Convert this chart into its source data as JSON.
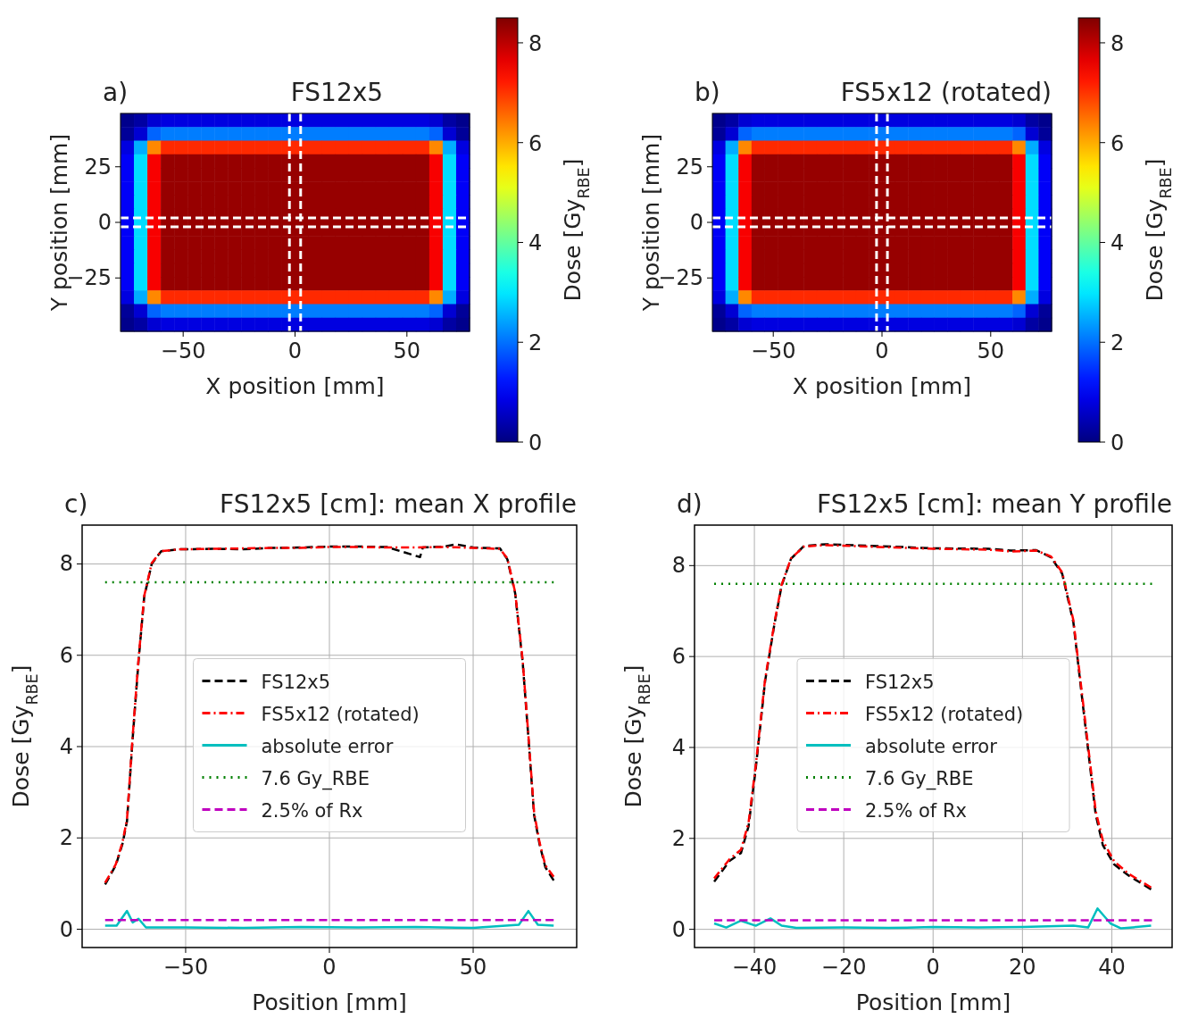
{
  "chart_data": [
    {
      "type": "heatmap",
      "title": "FS12x5",
      "annotations": [
        "a)"
      ],
      "xlabel": "X position [mm]",
      "ylabel": "Y position [mm]",
      "xlim": [
        -78,
        78
      ],
      "ylim": [
        -49,
        49
      ],
      "xticks": [
        -50,
        0,
        50
      ],
      "yticks": [
        -25,
        0,
        25
      ],
      "clim": [
        0,
        8.5
      ],
      "cticks": [
        0,
        2,
        4,
        6,
        8
      ],
      "clabel": "Dose [Gy$_{RBE}$]",
      "ref_lines": [
        {
          "axis": "x",
          "value": -2.5,
          "color": "#ffffff",
          "line_style": "dashed"
        },
        {
          "axis": "x",
          "value": 2.5,
          "color": "#ffffff",
          "line_style": "dashed"
        },
        {
          "axis": "y",
          "value": -2,
          "color": "#ffffff",
          "line_style": "dashed"
        },
        {
          "axis": "y",
          "value": 2,
          "color": "#ffffff",
          "line_style": "dashed"
        }
      ],
      "cells": [
        [
          0.1,
          0.3,
          0.7,
          0.8,
          0.8,
          0.8,
          0.8,
          0.8,
          0.8,
          0.8,
          0.8,
          0.8,
          0.8,
          0.8,
          0.8,
          0.8,
          0.8,
          0.8,
          0.8,
          0.8,
          0.8,
          0.8,
          0.8,
          0.7,
          0.3,
          0.1
        ],
        [
          0.2,
          0.7,
          1.9,
          2.1,
          2.1,
          2.1,
          2.1,
          2.1,
          2.1,
          2.1,
          2.1,
          2.1,
          2.1,
          2.1,
          2.1,
          2.1,
          2.1,
          2.1,
          2.1,
          2.1,
          2.1,
          2.1,
          2.1,
          1.9,
          0.7,
          0.2
        ],
        [
          0.8,
          2.5,
          6.3,
          7.1,
          7.1,
          7.1,
          7.1,
          7.1,
          7.1,
          7.1,
          7.1,
          7.1,
          7.1,
          7.1,
          7.1,
          7.1,
          7.1,
          7.1,
          7.1,
          7.1,
          7.1,
          7.1,
          7.1,
          6.3,
          2.5,
          0.8
        ],
        [
          1.0,
          2.9,
          7.5,
          8.3,
          8.3,
          8.3,
          8.3,
          8.3,
          8.3,
          8.3,
          8.3,
          8.3,
          8.3,
          8.3,
          8.3,
          8.3,
          8.3,
          8.3,
          8.3,
          8.3,
          8.3,
          8.3,
          8.3,
          7.5,
          2.9,
          1.0
        ],
        [
          1.0,
          2.9,
          7.5,
          8.3,
          8.3,
          8.3,
          8.3,
          8.3,
          8.3,
          8.3,
          8.3,
          8.3,
          8.3,
          8.3,
          8.3,
          8.3,
          8.3,
          8.3,
          8.3,
          8.3,
          8.3,
          8.3,
          8.3,
          7.5,
          2.9,
          1.0
        ],
        [
          1.0,
          2.9,
          7.5,
          8.3,
          8.3,
          8.3,
          8.3,
          8.3,
          8.3,
          8.3,
          8.3,
          8.3,
          8.3,
          8.3,
          8.3,
          8.3,
          8.3,
          8.3,
          8.3,
          8.3,
          8.3,
          8.3,
          8.3,
          7.5,
          2.9,
          1.0
        ],
        [
          1.0,
          2.9,
          7.5,
          8.3,
          8.3,
          8.3,
          8.3,
          8.3,
          8.3,
          8.3,
          8.3,
          8.3,
          8.3,
          8.3,
          8.3,
          8.3,
          8.3,
          8.3,
          8.3,
          8.3,
          8.3,
          8.3,
          8.3,
          7.5,
          2.9,
          1.0
        ],
        [
          1.0,
          2.9,
          7.5,
          8.3,
          8.3,
          8.3,
          8.3,
          8.3,
          8.3,
          8.3,
          8.3,
          8.3,
          8.3,
          8.3,
          8.3,
          8.3,
          8.3,
          8.3,
          8.3,
          8.3,
          8.3,
          8.3,
          8.3,
          7.5,
          2.9,
          1.0
        ],
        [
          1.0,
          2.9,
          7.5,
          8.3,
          8.3,
          8.3,
          8.3,
          8.3,
          8.3,
          8.3,
          8.3,
          8.3,
          8.3,
          8.3,
          8.3,
          8.3,
          8.3,
          8.3,
          8.3,
          8.3,
          8.3,
          8.3,
          8.3,
          7.5,
          2.9,
          1.0
        ],
        [
          1.0,
          2.9,
          7.5,
          8.3,
          8.3,
          8.3,
          8.3,
          8.3,
          8.3,
          8.3,
          8.3,
          8.3,
          8.3,
          8.3,
          8.3,
          8.3,
          8.3,
          8.3,
          8.3,
          8.3,
          8.3,
          8.3,
          8.3,
          7.5,
          2.9,
          1.0
        ],
        [
          1.0,
          2.9,
          7.5,
          8.3,
          8.3,
          8.3,
          8.3,
          8.3,
          8.3,
          8.3,
          8.3,
          8.3,
          8.3,
          8.3,
          8.3,
          8.3,
          8.3,
          8.3,
          8.3,
          8.3,
          8.3,
          8.3,
          8.3,
          7.5,
          2.9,
          1.0
        ],
        [
          1.0,
          2.9,
          7.5,
          8.3,
          8.3,
          8.3,
          8.3,
          8.3,
          8.3,
          8.3,
          8.3,
          8.3,
          8.3,
          8.3,
          8.3,
          8.3,
          8.3,
          8.3,
          8.3,
          8.3,
          8.3,
          8.3,
          8.3,
          7.5,
          2.9,
          1.0
        ],
        [
          1.0,
          2.9,
          7.5,
          8.3,
          8.3,
          8.3,
          8.3,
          8.3,
          8.3,
          8.3,
          8.3,
          8.3,
          8.3,
          8.3,
          8.3,
          8.3,
          8.3,
          8.3,
          8.3,
          8.3,
          8.3,
          8.3,
          8.3,
          7.5,
          2.9,
          1.0
        ],
        [
          0.8,
          2.5,
          6.3,
          7.1,
          7.1,
          7.1,
          7.1,
          7.1,
          7.1,
          7.1,
          7.1,
          7.1,
          7.1,
          7.1,
          7.1,
          7.1,
          7.1,
          7.1,
          7.1,
          7.1,
          7.1,
          7.1,
          7.1,
          6.3,
          2.5,
          0.8
        ],
        [
          0.2,
          0.7,
          1.9,
          2.1,
          2.1,
          2.1,
          2.1,
          2.1,
          2.1,
          2.1,
          2.1,
          2.1,
          2.1,
          2.1,
          2.1,
          2.1,
          2.1,
          2.1,
          2.1,
          2.1,
          2.1,
          2.1,
          2.1,
          1.9,
          0.7,
          0.2
        ],
        [
          0.1,
          0.3,
          0.7,
          0.8,
          0.8,
          0.8,
          0.8,
          0.8,
          0.8,
          0.8,
          0.8,
          0.8,
          0.8,
          0.8,
          0.8,
          0.8,
          0.8,
          0.8,
          0.8,
          0.8,
          0.8,
          0.8,
          0.8,
          0.7,
          0.3,
          0.1
        ]
      ]
    },
    {
      "type": "heatmap",
      "title": "FS5x12 (rotated)",
      "annotations": [
        "b)"
      ],
      "xlabel": "X position [mm]",
      "ylabel": "Y position [mm]",
      "xlim": [
        -78,
        78
      ],
      "ylim": [
        -49,
        49
      ],
      "xticks": [
        -50,
        0,
        50
      ],
      "yticks": [
        -25,
        0,
        25
      ],
      "clim": [
        0,
        8.5
      ],
      "cticks": [
        0,
        2,
        4,
        6,
        8
      ],
      "clabel": "Dose [Gy$_{RBE}$]",
      "ref_lines": [
        {
          "axis": "x",
          "value": -2.5,
          "color": "#ffffff",
          "line_style": "dashed"
        },
        {
          "axis": "x",
          "value": 2.5,
          "color": "#ffffff",
          "line_style": "dashed"
        },
        {
          "axis": "y",
          "value": -2,
          "color": "#ffffff",
          "line_style": "dashed"
        },
        {
          "axis": "y",
          "value": 2,
          "color": "#ffffff",
          "line_style": "dashed"
        }
      ],
      "cells": [
        [
          0.1,
          0.3,
          0.7,
          0.8,
          0.8,
          0.8,
          0.8,
          0.8,
          0.8,
          0.8,
          0.8,
          0.8,
          0.8,
          0.8,
          0.8,
          0.8,
          0.8,
          0.8,
          0.8,
          0.8,
          0.8,
          0.8,
          0.8,
          0.7,
          0.3,
          0.1
        ],
        [
          0.2,
          0.7,
          1.9,
          2.1,
          2.1,
          2.1,
          2.1,
          2.1,
          2.1,
          2.1,
          2.1,
          2.1,
          2.1,
          2.1,
          2.1,
          2.1,
          2.1,
          2.1,
          2.1,
          2.1,
          2.1,
          2.1,
          2.1,
          1.9,
          0.7,
          0.2
        ],
        [
          0.8,
          2.5,
          6.3,
          7.1,
          7.1,
          7.1,
          7.1,
          7.1,
          7.1,
          7.1,
          7.1,
          7.1,
          7.1,
          7.1,
          7.1,
          7.1,
          7.1,
          7.1,
          7.1,
          7.1,
          7.1,
          7.1,
          7.1,
          6.3,
          2.5,
          0.8
        ],
        [
          1.0,
          2.9,
          7.5,
          8.3,
          8.3,
          8.3,
          8.3,
          8.3,
          8.3,
          8.3,
          8.3,
          8.3,
          8.3,
          8.3,
          8.3,
          8.3,
          8.3,
          8.3,
          8.3,
          8.3,
          8.3,
          8.3,
          8.3,
          7.5,
          2.9,
          1.0
        ],
        [
          1.0,
          2.9,
          7.5,
          8.3,
          8.3,
          8.3,
          8.3,
          8.3,
          8.3,
          8.3,
          8.3,
          8.3,
          8.3,
          8.3,
          8.3,
          8.3,
          8.3,
          8.3,
          8.3,
          8.3,
          8.3,
          8.3,
          8.3,
          7.5,
          2.9,
          1.0
        ],
        [
          1.0,
          2.9,
          7.5,
          8.3,
          8.3,
          8.3,
          8.3,
          8.3,
          8.3,
          8.3,
          8.3,
          8.3,
          8.3,
          8.3,
          8.3,
          8.3,
          8.3,
          8.3,
          8.3,
          8.3,
          8.3,
          8.3,
          8.3,
          7.5,
          2.9,
          1.0
        ],
        [
          1.0,
          2.9,
          7.5,
          8.3,
          8.3,
          8.3,
          8.3,
          8.3,
          8.3,
          8.3,
          8.3,
          8.3,
          8.3,
          8.3,
          8.3,
          8.3,
          8.3,
          8.3,
          8.3,
          8.3,
          8.3,
          8.3,
          8.3,
          7.5,
          2.9,
          1.0
        ],
        [
          1.0,
          2.9,
          7.5,
          8.3,
          8.3,
          8.3,
          8.3,
          8.3,
          8.3,
          8.3,
          8.3,
          8.3,
          8.3,
          8.3,
          8.3,
          8.3,
          8.3,
          8.3,
          8.3,
          8.3,
          8.3,
          8.3,
          8.3,
          7.5,
          2.9,
          1.0
        ],
        [
          1.0,
          2.9,
          7.5,
          8.3,
          8.3,
          8.3,
          8.3,
          8.3,
          8.3,
          8.3,
          8.3,
          8.3,
          8.3,
          8.3,
          8.3,
          8.3,
          8.3,
          8.3,
          8.3,
          8.3,
          8.3,
          8.3,
          8.3,
          7.5,
          2.9,
          1.0
        ],
        [
          1.0,
          2.9,
          7.5,
          8.3,
          8.3,
          8.3,
          8.3,
          8.3,
          8.3,
          8.3,
          8.3,
          8.3,
          8.3,
          8.3,
          8.3,
          8.3,
          8.3,
          8.3,
          8.3,
          8.3,
          8.3,
          8.3,
          8.3,
          7.5,
          2.9,
          1.0
        ],
        [
          1.0,
          2.9,
          7.5,
          8.3,
          8.3,
          8.3,
          8.3,
          8.3,
          8.3,
          8.3,
          8.3,
          8.3,
          8.3,
          8.3,
          8.3,
          8.3,
          8.3,
          8.3,
          8.3,
          8.3,
          8.3,
          8.3,
          8.3,
          7.5,
          2.9,
          1.0
        ],
        [
          1.0,
          2.9,
          7.5,
          8.3,
          8.3,
          8.3,
          8.3,
          8.3,
          8.3,
          8.3,
          8.3,
          8.3,
          8.3,
          8.3,
          8.3,
          8.3,
          8.3,
          8.3,
          8.3,
          8.3,
          8.3,
          8.3,
          8.3,
          7.5,
          2.9,
          1.0
        ],
        [
          1.0,
          2.9,
          7.5,
          8.3,
          8.3,
          8.3,
          8.3,
          8.3,
          8.3,
          8.3,
          8.3,
          8.3,
          8.3,
          8.3,
          8.3,
          8.3,
          8.3,
          8.3,
          8.3,
          8.3,
          8.3,
          8.3,
          8.3,
          7.5,
          2.9,
          1.0
        ],
        [
          0.8,
          2.5,
          6.3,
          7.1,
          7.1,
          7.1,
          7.1,
          7.1,
          7.1,
          7.1,
          7.1,
          7.1,
          7.1,
          7.1,
          7.1,
          7.1,
          7.1,
          7.1,
          7.1,
          7.1,
          7.1,
          7.1,
          7.1,
          6.3,
          2.5,
          0.8
        ],
        [
          0.2,
          0.7,
          1.9,
          2.1,
          2.1,
          2.1,
          2.1,
          2.1,
          2.1,
          2.1,
          2.1,
          2.1,
          2.1,
          2.1,
          2.1,
          2.1,
          2.1,
          2.1,
          2.1,
          2.1,
          2.1,
          2.1,
          2.1,
          1.9,
          0.7,
          0.2
        ],
        [
          0.1,
          0.3,
          0.7,
          0.8,
          0.8,
          0.8,
          0.8,
          0.8,
          0.8,
          0.8,
          0.8,
          0.8,
          0.8,
          0.8,
          0.8,
          0.8,
          0.8,
          0.8,
          0.8,
          0.8,
          0.8,
          0.8,
          0.8,
          0.7,
          0.3,
          0.1
        ]
      ]
    },
    {
      "type": "line",
      "title": "FS12x5 [cm]: mean X profile",
      "annotations": [
        "c)"
      ],
      "xlabel": "Position [mm]",
      "ylabel": "Dose [Gy$_{RBE}$]",
      "xlim": [
        -86,
        86
      ],
      "ylim": [
        -0.4,
        8.85
      ],
      "xticks": [
        -50,
        0,
        50
      ],
      "yticks": [
        0,
        2,
        4,
        6,
        8
      ],
      "grid": true,
      "legend": "center",
      "series": [
        {
          "name": "FS12x5",
          "color": "#000000",
          "line_style": "dashed",
          "x": [
            -78,
            -74.3,
            -72,
            -70.4,
            -68.4,
            -66.4,
            -64.4,
            -61.8,
            -58.5,
            -51.9,
            -40,
            -30,
            -20,
            -10,
            0,
            10,
            20,
            31.5,
            32.5,
            40,
            44,
            50,
            59.3,
            61.9,
            64.6,
            67.2,
            69.2,
            71.2,
            73.1,
            75.1,
            78
          ],
          "values": [
            0.98,
            1.4,
            1.86,
            2.36,
            4.2,
            5.86,
            7.28,
            8.0,
            8.28,
            8.32,
            8.33,
            8.32,
            8.35,
            8.36,
            8.38,
            8.38,
            8.37,
            8.15,
            8.36,
            8.38,
            8.43,
            8.36,
            8.34,
            8.1,
            7.36,
            5.86,
            4.2,
            2.5,
            1.86,
            1.36,
            1.07
          ]
        },
        {
          "name": "FS5x12 (rotated)",
          "color": "#ff0000",
          "line_style": "dashdot",
          "x": [
            -78,
            -74.3,
            -72,
            -70.4,
            -68.4,
            -66.4,
            -64.4,
            -61.8,
            -58.5,
            -51.9,
            -40,
            -30,
            -20,
            -10,
            0,
            10,
            20,
            30,
            40,
            50,
            59.3,
            61.9,
            64.6,
            67.2,
            69.2,
            71.2,
            73.1,
            75.1,
            78
          ],
          "values": [
            1.02,
            1.42,
            1.9,
            2.4,
            4.25,
            5.9,
            7.3,
            8.02,
            8.28,
            8.32,
            8.33,
            8.34,
            8.35,
            8.35,
            8.37,
            8.37,
            8.36,
            8.36,
            8.37,
            8.35,
            8.33,
            8.12,
            7.38,
            5.9,
            4.25,
            2.55,
            1.9,
            1.4,
            1.15
          ]
        },
        {
          "name": "absolute error",
          "color": "#00bfbf",
          "line_style": "solid",
          "x": [
            -78,
            -74,
            -70.4,
            -68.4,
            -66.4,
            -63.8,
            -50,
            -30,
            -10,
            10,
            30,
            50,
            65.9,
            69.2,
            72.5,
            78
          ],
          "values": [
            0.08,
            0.08,
            0.4,
            0.15,
            0.23,
            0.04,
            0.04,
            0.03,
            0.05,
            0.04,
            0.05,
            0.03,
            0.1,
            0.4,
            0.1,
            0.08
          ]
        },
        {
          "name": "7.6 Gy_RBE",
          "color": "#008000",
          "line_style": "dotted",
          "x": [
            -78,
            78
          ],
          "values": [
            7.6,
            7.6
          ]
        },
        {
          "name": "2.5% of Rx",
          "color": "#bf00bf",
          "line_style": "dashed",
          "x": [
            -78,
            78
          ],
          "values": [
            0.2,
            0.2
          ]
        }
      ]
    },
    {
      "type": "line",
      "title": "FS12x5 [cm]: mean Y profile",
      "annotations": [
        "d)"
      ],
      "xlabel": "Position [mm]",
      "ylabel": "Dose [Gy$_{RBE}$]",
      "xlim": [
        -53.4,
        53.5
      ],
      "ylim": [
        -0.4,
        8.89
      ],
      "xticks": [
        -40,
        -20,
        0,
        20,
        40
      ],
      "yticks": [
        0,
        2,
        4,
        6,
        8
      ],
      "grid": true,
      "legend": "center",
      "series": [
        {
          "name": "FS12x5",
          "color": "#000000",
          "line_style": "dashed",
          "x": [
            -49,
            -45.5,
            -43,
            -41.3,
            -39.7,
            -37.6,
            -35.5,
            -33.9,
            -31.8,
            -28.9,
            -24,
            -12.4,
            0,
            12.4,
            17.4,
            23.1,
            26.4,
            28.9,
            31.4,
            33.9,
            36.4,
            38,
            40.5,
            43.8,
            48.8
          ],
          "values": [
            1.05,
            1.51,
            1.68,
            2.27,
            3.53,
            5.46,
            6.72,
            7.56,
            8.15,
            8.43,
            8.47,
            8.43,
            8.38,
            8.37,
            8.33,
            8.34,
            8.18,
            7.82,
            6.75,
            4.62,
            2.52,
            1.85,
            1.43,
            1.18,
            0.88
          ]
        },
        {
          "name": "FS5x12 (rotated)",
          "color": "#ff0000",
          "line_style": "dashdot",
          "x": [
            -49,
            -45.5,
            -43,
            -41.3,
            -39.7,
            -37.6,
            -35.5,
            -33.9,
            -31.8,
            -28.9,
            -24,
            -12.4,
            0,
            12.4,
            17.4,
            23.1,
            26.4,
            28.9,
            31.4,
            33.9,
            36.4,
            38,
            40.5,
            43.8,
            48.8
          ],
          "values": [
            1.12,
            1.55,
            1.75,
            2.35,
            3.6,
            5.5,
            6.75,
            7.58,
            8.16,
            8.42,
            8.45,
            8.41,
            8.37,
            8.35,
            8.31,
            8.33,
            8.2,
            7.85,
            6.8,
            4.7,
            2.6,
            1.95,
            1.5,
            1.22,
            0.92
          ]
        },
        {
          "name": "absolute error",
          "color": "#00bfbf",
          "line_style": "solid",
          "x": [
            -49,
            -46.3,
            -43,
            -39.7,
            -36.4,
            -33.9,
            -30.6,
            -20,
            -10,
            0,
            10,
            20,
            31.4,
            34.7,
            36.8,
            39.7,
            42.1,
            48.8
          ],
          "values": [
            0.13,
            0.04,
            0.19,
            0.08,
            0.24,
            0.08,
            0.03,
            0.04,
            0.03,
            0.05,
            0.04,
            0.05,
            0.08,
            0.04,
            0.46,
            0.13,
            0.02,
            0.08
          ]
        },
        {
          "name": "7.6 Gy_RBE",
          "color": "#008000",
          "line_style": "dotted",
          "x": [
            -49,
            49
          ],
          "values": [
            7.6,
            7.6
          ]
        },
        {
          "name": "2.5% of Rx",
          "color": "#bf00bf",
          "line_style": "dashed",
          "x": [
            -49,
            49
          ],
          "values": [
            0.2,
            0.2
          ]
        }
      ]
    }
  ]
}
